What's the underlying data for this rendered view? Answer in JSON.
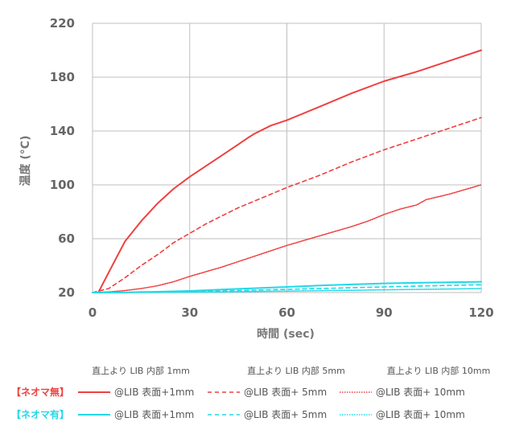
{
  "chart_data": {
    "type": "line",
    "title": "",
    "xlabel": "時間 (sec)",
    "ylabel": "温度 (°C)",
    "xlim": [
      0,
      120
    ],
    "ylim": [
      20,
      220
    ],
    "xticks": [
      "0",
      "30",
      "60",
      "90",
      "120"
    ],
    "yticks": [
      "20",
      "60",
      "100",
      "140",
      "180",
      "220"
    ],
    "grid": true,
    "legend_position": "bottom",
    "legend_columns": [
      "直上より LIB 内部 1mm",
      "直上より LIB 内部 5mm",
      "直上より LIB 内部 10mm"
    ],
    "legend_groups": [
      {
        "label": "【ネオマ無】",
        "color": "#f04040"
      },
      {
        "label": "【ネオマ有】",
        "color": "#22d8e8"
      }
    ],
    "series": [
      {
        "name": "@LIB 表面+1mm",
        "group": 0,
        "style": "solid",
        "x": [
          2,
          5,
          10,
          15,
          20,
          25,
          30,
          35,
          40,
          45,
          48,
          50,
          55,
          60,
          70,
          80,
          90,
          100,
          110,
          120
        ],
        "y": [
          21,
          35,
          58,
          73,
          86,
          97,
          106,
          114,
          122,
          130,
          135,
          138,
          144,
          148,
          158,
          168,
          177,
          184,
          192,
          200
        ]
      },
      {
        "name": "@LIB 表面+ 5mm",
        "group": 0,
        "style": "dashed",
        "x": [
          0,
          5,
          10,
          15,
          20,
          25,
          30,
          35,
          40,
          45,
          50,
          55,
          60,
          70,
          80,
          90,
          100,
          110,
          120
        ],
        "y": [
          20,
          23,
          31,
          40,
          48,
          57,
          64,
          71,
          77,
          83,
          88,
          93,
          98,
          107,
          117,
          126,
          134,
          142,
          150
        ]
      },
      {
        "name": "@LIB 表面+ 10mm",
        "group": 0,
        "style": "dotted",
        "x": [
          0,
          5,
          10,
          15,
          20,
          25,
          30,
          40,
          50,
          60,
          70,
          80,
          85,
          90,
          95,
          100,
          103,
          110,
          120
        ],
        "y": [
          20,
          20.5,
          21.5,
          23,
          25,
          28,
          32,
          39,
          47,
          55,
          62,
          69,
          73,
          78,
          82,
          85,
          89,
          93,
          100
        ]
      },
      {
        "name": "@LIB 表面+1mm",
        "group": 1,
        "style": "solid",
        "x": [
          0,
          10,
          20,
          30,
          40,
          50,
          60,
          70,
          80,
          90,
          100,
          110,
          120
        ],
        "y": [
          20,
          20.2,
          20.6,
          21.2,
          22.2,
          23.2,
          24.2,
          25.2,
          26.0,
          26.8,
          27.2,
          27.6,
          28
        ]
      },
      {
        "name": "@LIB 表面+ 5mm",
        "group": 1,
        "style": "dashed",
        "x": [
          0,
          10,
          20,
          30,
          40,
          50,
          60,
          70,
          80,
          90,
          100,
          110,
          120
        ],
        "y": [
          20,
          20.1,
          20.3,
          20.7,
          21.2,
          21.8,
          22.4,
          23.0,
          23.6,
          24.2,
          24.8,
          25.3,
          25.8
        ]
      },
      {
        "name": "@LIB 表面+ 10mm",
        "group": 1,
        "style": "dotted",
        "x": [
          0,
          10,
          20,
          30,
          40,
          50,
          60,
          70,
          80,
          90,
          100,
          110,
          120
        ],
        "y": [
          20,
          20.0,
          20.1,
          20.3,
          20.5,
          20.8,
          21.1,
          21.4,
          21.7,
          22.0,
          22.3,
          22.6,
          23
        ]
      }
    ]
  }
}
